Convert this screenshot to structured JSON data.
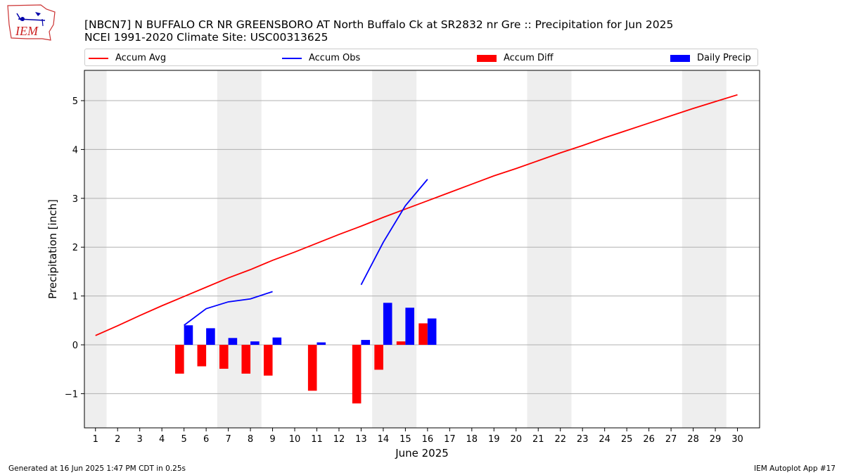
{
  "title_line1": "[NBCN7] N BUFFALO CR NR GREENSBORO  AT North Buffalo Ck at SR2832 nr Gre :: Precipitation for Jun 2025",
  "title_line2": "NCEI 1991-2020 Climate Site: USC00313625",
  "footer_left": "Generated at 16 Jun 2025 1:47 PM CDT in 0.25s",
  "footer_right": "IEM Autoplot App #17",
  "logo_text": "IEM",
  "colors": {
    "accum_avg": "#ff0000",
    "accum_obs": "#0000ff",
    "accum_diff": "#ff0000",
    "daily_precip": "#0000ff",
    "weekend_shade": "#eeeeee",
    "grid": "#b0b0b0"
  },
  "legend": [
    {
      "label": "Accum Avg",
      "kind": "line",
      "color": "#ff0000"
    },
    {
      "label": "Accum Obs",
      "kind": "line",
      "color": "#0000ff"
    },
    {
      "label": "Accum Diff",
      "kind": "box",
      "color": "#ff0000"
    },
    {
      "label": "Daily Precip",
      "kind": "box",
      "color": "#0000ff"
    }
  ],
  "chart_data": {
    "type": "bar",
    "xlabel": "June 2025",
    "ylabel": "Precipitation [inch]",
    "xlim": [
      0.5,
      31
    ],
    "ylim": [
      -1.7,
      5.62
    ],
    "x_ticks": [
      1,
      2,
      3,
      4,
      5,
      6,
      7,
      8,
      9,
      10,
      11,
      12,
      13,
      14,
      15,
      16,
      17,
      18,
      19,
      20,
      21,
      22,
      23,
      24,
      25,
      26,
      27,
      28,
      29,
      30
    ],
    "y_ticks": [
      -1,
      0,
      1,
      2,
      3,
      4,
      5
    ],
    "y_tick_labels": [
      "−1",
      "0",
      "1",
      "2",
      "3",
      "4",
      "5"
    ],
    "grid": "horizontal",
    "legend_position": "top",
    "weekend_shading": [
      [
        0.5,
        1.5
      ],
      [
        6.5,
        8.5
      ],
      [
        13.5,
        15.5
      ],
      [
        20.5,
        22.5
      ],
      [
        27.5,
        29.5
      ]
    ],
    "accum_avg": {
      "name": "Accum Avg",
      "days": [
        1,
        2,
        3,
        4,
        5,
        6,
        7,
        8,
        9,
        10,
        11,
        12,
        13,
        14,
        15,
        16,
        17,
        18,
        19,
        20,
        21,
        22,
        23,
        24,
        25,
        26,
        27,
        28,
        29,
        30
      ],
      "values": [
        0.19,
        0.39,
        0.6,
        0.8,
        0.99,
        1.18,
        1.37,
        1.54,
        1.73,
        1.9,
        2.08,
        2.26,
        2.43,
        2.61,
        2.78,
        2.95,
        3.12,
        3.29,
        3.46,
        3.61,
        3.77,
        3.93,
        4.08,
        4.24,
        4.39,
        4.54,
        4.69,
        4.84,
        4.98,
        5.12
      ]
    },
    "accum_obs": {
      "name": "Accum Obs",
      "segments": [
        {
          "days": [
            5,
            6,
            7,
            8,
            9
          ],
          "values": [
            0.4,
            0.74,
            0.88,
            0.94,
            1.09
          ]
        },
        {
          "days": [
            13,
            14,
            15,
            16
          ],
          "values": [
            1.23,
            2.1,
            2.85,
            3.39
          ]
        }
      ]
    },
    "accum_diff": {
      "name": "Accum Diff",
      "days": [
        5,
        6,
        7,
        8,
        9,
        11,
        13,
        14,
        15,
        16
      ],
      "values": [
        -0.59,
        -0.44,
        -0.49,
        -0.59,
        -0.63,
        -0.94,
        -1.2,
        -0.51,
        0.07,
        0.44
      ]
    },
    "daily_precip": {
      "name": "Daily Precip",
      "days": [
        5,
        6,
        7,
        8,
        9,
        11,
        13,
        14,
        15,
        16
      ],
      "values": [
        0.4,
        0.34,
        0.14,
        0.07,
        0.15,
        0.05,
        0.1,
        0.86,
        0.76,
        0.54
      ]
    }
  }
}
